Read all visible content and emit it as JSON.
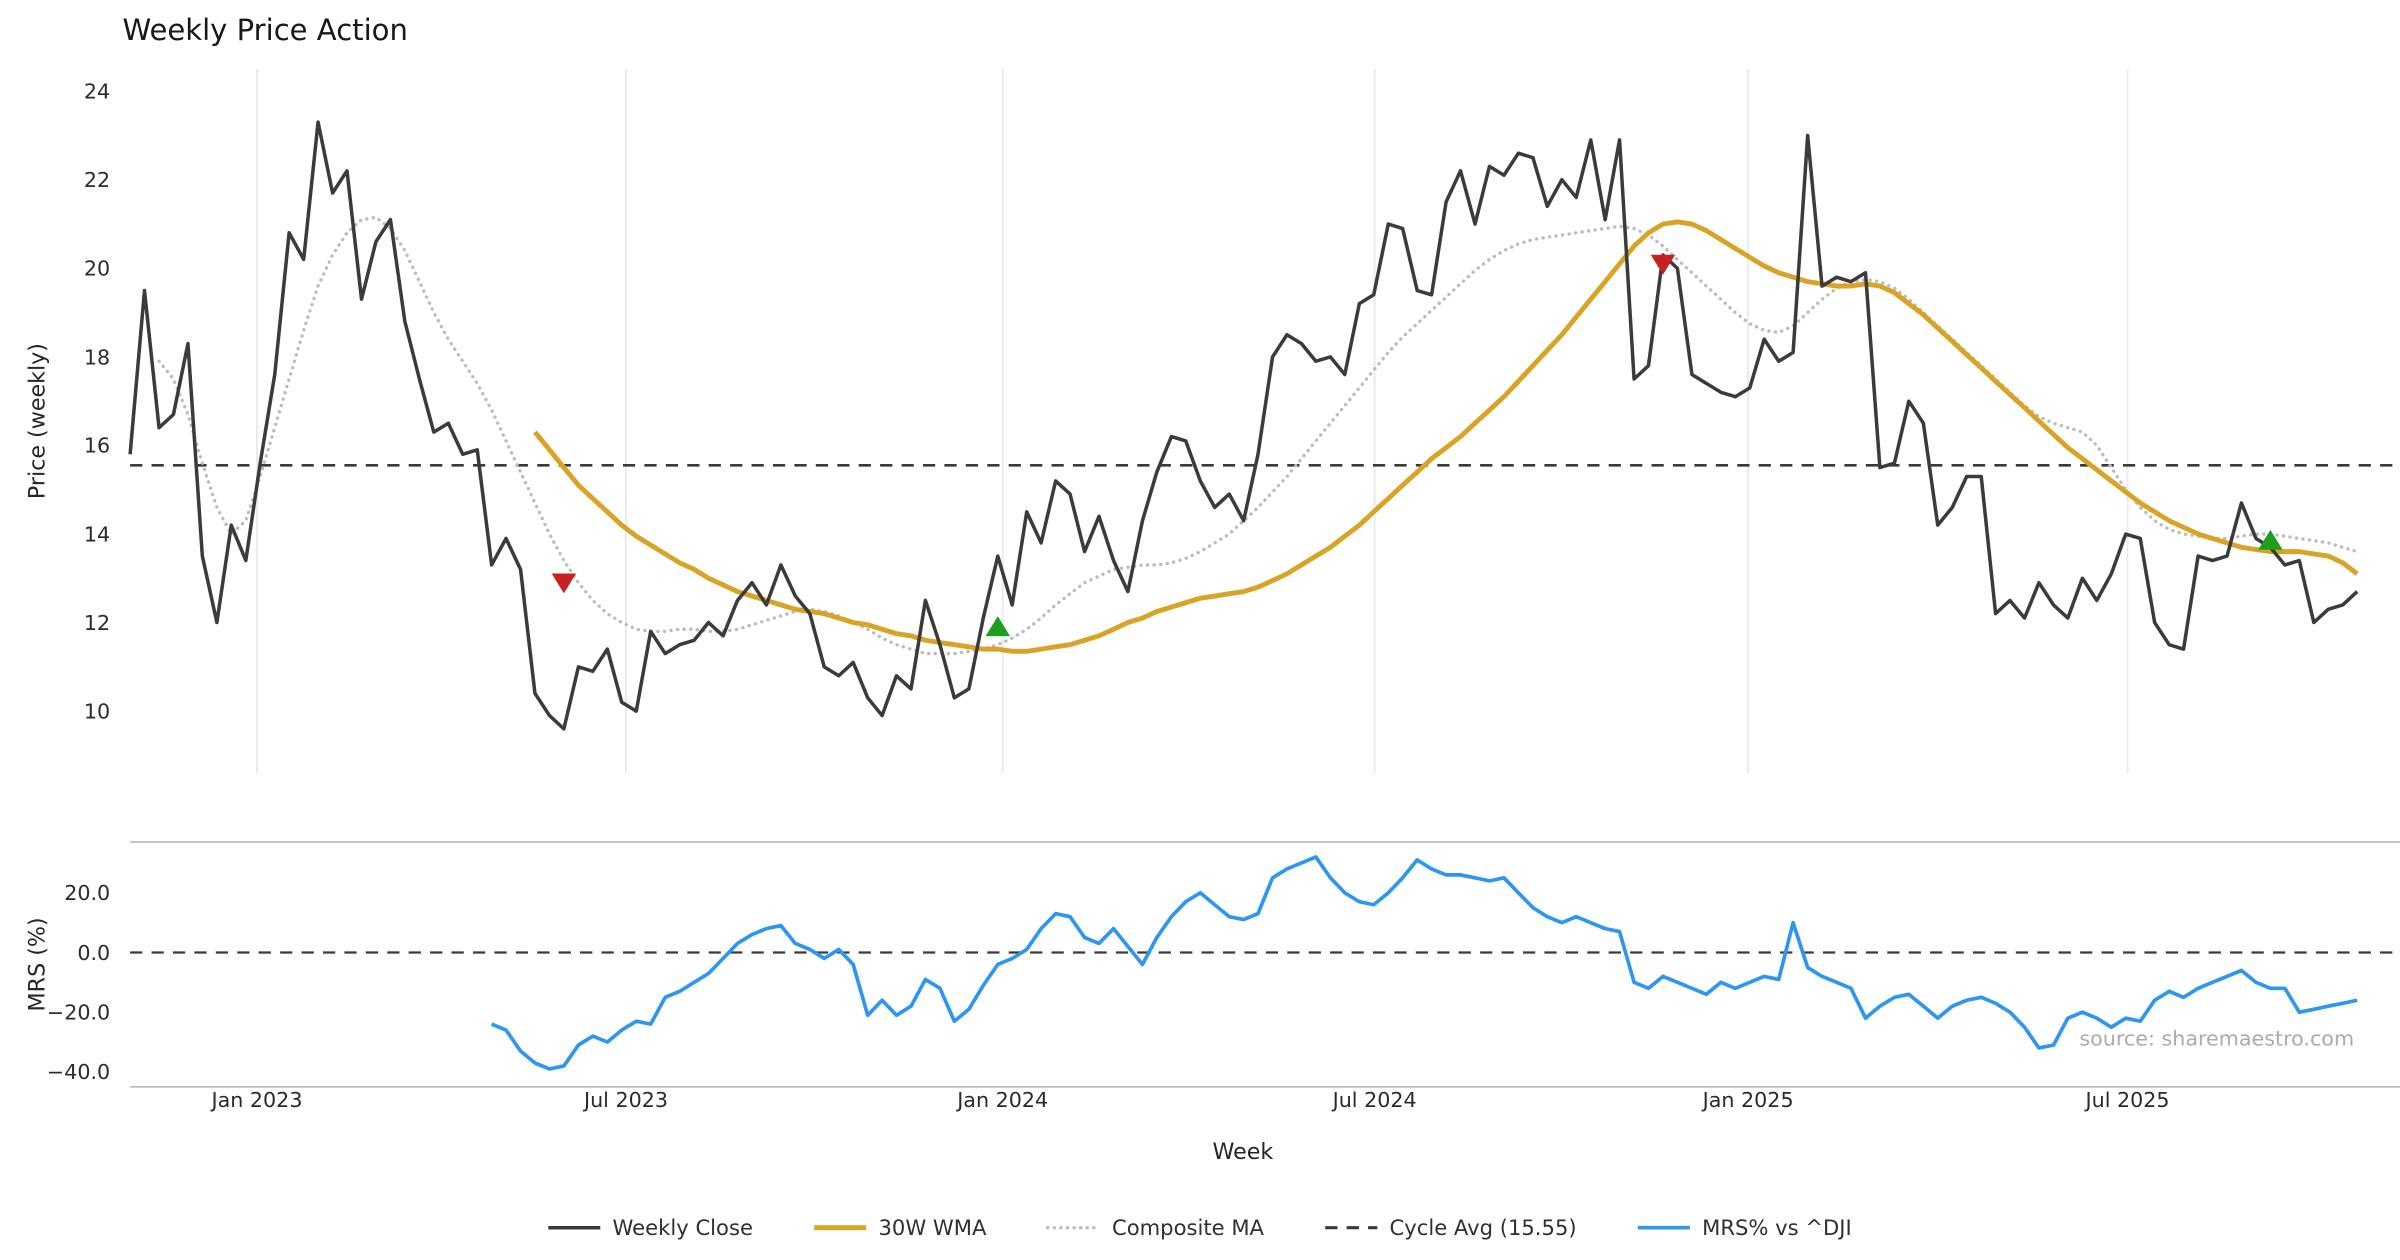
{
  "source_note": "source: sharemaestro.com",
  "colors": {
    "weekly_close": "#3b3b3b",
    "wma_30w": "#d9a425",
    "composite_ma": "#bcbcbc",
    "cycle_avg": "#3a3a3a",
    "mrs": "#2e96f0",
    "sell_marker": "#c62222",
    "buy_marker": "#1e9e1e",
    "grid": "#ebebeb",
    "spine": "#b3b3b3",
    "tick_text": "#2b2b2b",
    "source_text": "#ababab"
  },
  "legend": [
    {
      "key": "weekly_close",
      "label": "Weekly Close"
    },
    {
      "key": "wma_30w",
      "label": "30W WMA"
    },
    {
      "key": "composite_ma",
      "label": "Composite MA"
    },
    {
      "key": "cycle_avg",
      "label": "Cycle Avg (15.55)"
    },
    {
      "key": "mrs",
      "label": "MRS% vs ^DJI"
    }
  ],
  "chart_data": {
    "type": "line",
    "title": "Weekly Price Action",
    "xlabel": "Week",
    "x_unit": "weekly index (155 weeks, Nov 2022 - Oct 2025)",
    "n_points": 155,
    "grid": "vertical-x-only",
    "legend_position": "bottom-center",
    "x_ticks": [
      {
        "label": "Jan 2023",
        "f": 0.057
      },
      {
        "label": "Jul 2023",
        "f": 0.2227
      },
      {
        "label": "Jan 2024",
        "f": 0.3918
      },
      {
        "label": "Jul 2024",
        "f": 0.5588
      },
      {
        "label": "Jan 2025",
        "f": 0.7265
      },
      {
        "label": "Jul 2025",
        "f": 0.8969
      }
    ],
    "panels": [
      {
        "id": "price",
        "ylabel": "Price (weekly)",
        "ylim": [
          8.6,
          24.5
        ],
        "yticks": [
          {
            "label": "24",
            "v": 24
          },
          {
            "label": "22",
            "v": 22
          },
          {
            "label": "20",
            "v": 20
          },
          {
            "label": "18",
            "v": 18
          },
          {
            "label": "16",
            "v": 16
          },
          {
            "label": "14",
            "v": 14
          },
          {
            "label": "12",
            "v": 12
          },
          {
            "label": "10",
            "v": 10
          }
        ]
      },
      {
        "id": "mrs",
        "ylabel": "MRS (%)",
        "ylim": [
          -45,
          37
        ],
        "yticks": [
          {
            "label": "20.0",
            "v": 20
          },
          {
            "label": "0.0",
            "v": 0
          },
          {
            "label": "−20.0",
            "v": -20
          },
          {
            "label": "−40.0",
            "v": -40
          }
        ]
      }
    ],
    "cycle_avg": {
      "label": "Cycle Avg (15.55)",
      "value": 15.55
    },
    "series": [
      {
        "key": "weekly_close",
        "name": "Weekly Close",
        "panel": "price",
        "start": 0,
        "values": [
          15.8,
          19.5,
          16.4,
          16.7,
          18.3,
          13.5,
          12.0,
          14.2,
          13.4,
          15.6,
          17.6,
          20.8,
          20.2,
          23.3,
          21.7,
          22.2,
          19.3,
          20.6,
          21.1,
          18.8,
          17.5,
          16.3,
          16.5,
          15.8,
          15.9,
          13.3,
          13.9,
          13.2,
          10.4,
          9.9,
          9.6,
          11.0,
          10.9,
          11.4,
          10.2,
          10.0,
          11.8,
          11.3,
          11.5,
          11.6,
          12.0,
          11.7,
          12.5,
          12.9,
          12.4,
          13.3,
          12.6,
          12.2,
          11.0,
          10.8,
          11.1,
          10.3,
          9.9,
          10.8,
          10.5,
          12.5,
          11.5,
          10.3,
          10.5,
          12.1,
          13.5,
          12.4,
          14.5,
          13.8,
          15.2,
          14.9,
          13.6,
          14.4,
          13.4,
          12.7,
          14.3,
          15.4,
          16.2,
          16.1,
          15.2,
          14.6,
          14.9,
          14.3,
          15.8,
          18.0,
          18.5,
          18.3,
          17.9,
          18.0,
          17.6,
          19.2,
          19.4,
          21.0,
          20.9,
          19.5,
          19.4,
          21.5,
          22.2,
          21.0,
          22.3,
          22.1,
          22.6,
          22.5,
          21.4,
          22.0,
          21.6,
          22.9,
          21.1,
          22.9,
          17.5,
          17.8,
          20.3,
          20.0,
          17.6,
          17.4,
          17.2,
          17.1,
          17.3,
          18.4,
          17.9,
          18.1,
          23.0,
          19.6,
          19.8,
          19.7,
          19.9,
          15.5,
          15.6,
          17.0,
          16.5,
          14.2,
          14.6,
          15.3,
          15.3,
          12.2,
          12.5,
          12.1,
          12.9,
          12.4,
          12.1,
          13.0,
          12.5,
          13.1,
          14.0,
          13.9,
          12.0,
          11.5,
          11.4,
          13.5,
          13.4,
          13.5,
          14.7,
          13.9,
          13.7,
          13.3,
          13.4,
          12.0,
          12.3,
          12.4,
          12.7
        ]
      },
      {
        "key": "wma_30w",
        "name": "30W WMA",
        "panel": "price",
        "start": 28,
        "values": [
          16.3,
          15.9,
          15.5,
          15.1,
          14.8,
          14.5,
          14.2,
          13.95,
          13.75,
          13.55,
          13.35,
          13.2,
          13.0,
          12.85,
          12.7,
          12.6,
          12.5,
          12.4,
          12.3,
          12.25,
          12.2,
          12.1,
          12.0,
          11.95,
          11.85,
          11.75,
          11.7,
          11.6,
          11.55,
          11.5,
          11.45,
          11.4,
          11.4,
          11.35,
          11.35,
          11.4,
          11.45,
          11.5,
          11.6,
          11.7,
          11.85,
          12.0,
          12.1,
          12.25,
          12.35,
          12.45,
          12.55,
          12.6,
          12.65,
          12.7,
          12.8,
          12.95,
          13.1,
          13.3,
          13.5,
          13.7,
          13.95,
          14.2,
          14.5,
          14.8,
          15.1,
          15.4,
          15.7,
          15.95,
          16.2,
          16.5,
          16.8,
          17.1,
          17.45,
          17.8,
          18.15,
          18.5,
          18.9,
          19.3,
          19.7,
          20.1,
          20.5,
          20.8,
          21.0,
          21.05,
          21.0,
          20.85,
          20.65,
          20.45,
          20.25,
          20.05,
          19.9,
          19.8,
          19.7,
          19.65,
          19.6,
          19.6,
          19.65,
          19.6,
          19.45,
          19.2,
          18.95,
          18.65,
          18.35,
          18.05,
          17.75,
          17.45,
          17.15,
          16.85,
          16.55,
          16.25,
          15.95,
          15.7,
          15.45,
          15.2,
          14.95,
          14.7,
          14.5,
          14.3,
          14.15,
          14.0,
          13.9,
          13.8,
          13.7,
          13.65,
          13.6,
          13.6,
          13.6,
          13.55,
          13.5,
          13.35,
          13.1
        ]
      },
      {
        "key": "composite_ma",
        "name": "Composite MA",
        "panel": "price",
        "start": 2,
        "values": [
          17.9,
          17.5,
          16.7,
          15.6,
          14.6,
          14.0,
          14.3,
          15.3,
          16.4,
          17.5,
          18.6,
          19.6,
          20.3,
          20.8,
          21.1,
          21.15,
          20.9,
          20.4,
          19.7,
          19.0,
          18.4,
          17.9,
          17.4,
          16.8,
          16.1,
          15.4,
          14.7,
          14.0,
          13.4,
          12.9,
          12.5,
          12.2,
          12.0,
          11.85,
          11.8,
          11.8,
          11.85,
          11.85,
          11.8,
          11.8,
          11.85,
          11.95,
          12.05,
          12.15,
          12.25,
          12.3,
          12.25,
          12.15,
          12.0,
          11.85,
          11.65,
          11.5,
          11.4,
          11.3,
          11.3,
          11.3,
          11.35,
          11.4,
          11.5,
          11.65,
          11.85,
          12.1,
          12.4,
          12.65,
          12.9,
          13.05,
          13.2,
          13.25,
          13.3,
          13.3,
          13.35,
          13.45,
          13.6,
          13.8,
          14.0,
          14.3,
          14.6,
          14.95,
          15.3,
          15.7,
          16.1,
          16.5,
          16.9,
          17.3,
          17.7,
          18.1,
          18.45,
          18.75,
          19.05,
          19.35,
          19.65,
          19.95,
          20.2,
          20.4,
          20.55,
          20.65,
          20.7,
          20.75,
          20.8,
          20.85,
          20.9,
          20.95,
          20.9,
          20.75,
          20.5,
          20.2,
          19.9,
          19.6,
          19.3,
          19.0,
          18.75,
          18.6,
          18.55,
          18.7,
          19.0,
          19.3,
          19.55,
          19.7,
          19.75,
          19.7,
          19.55,
          19.3,
          19.0,
          18.7,
          18.4,
          18.1,
          17.8,
          17.5,
          17.2,
          16.9,
          16.65,
          16.5,
          16.4,
          16.3,
          16.0,
          15.5,
          15.0,
          14.6,
          14.3,
          14.1,
          14.0,
          13.95,
          13.9,
          13.9,
          13.95,
          14.0,
          14.0,
          13.95,
          13.9,
          13.85,
          13.8,
          13.7,
          13.6
        ]
      },
      {
        "key": "mrs",
        "name": "MRS% vs ^DJI",
        "panel": "mrs",
        "start": 25,
        "values": [
          -24,
          -26,
          -33,
          -37,
          -39,
          -38,
          -31,
          -28,
          -30,
          -26,
          -23,
          -24,
          -15,
          -13,
          -10,
          -7,
          -2,
          3,
          6,
          8,
          9,
          3,
          1,
          -2,
          1,
          -4,
          -21,
          -16,
          -21,
          -18,
          -9,
          -12,
          -23,
          -19,
          -11,
          -4,
          -2,
          1,
          8,
          13,
          12,
          5,
          3,
          8,
          2,
          -4,
          5,
          12,
          17,
          20,
          16,
          12,
          11,
          13,
          25,
          28,
          30,
          32,
          25,
          20,
          17,
          16,
          20,
          25,
          31,
          28,
          26,
          26,
          25,
          24,
          25,
          20,
          15,
          12,
          10,
          12,
          10,
          8,
          7,
          -10,
          -12,
          -8,
          -10,
          -12,
          -14,
          -10,
          -12,
          -10,
          -8,
          -9,
          10,
          -5,
          -8,
          -10,
          -12,
          -22,
          -18,
          -15,
          -14,
          -18,
          -22,
          -18,
          -16,
          -15,
          -17,
          -20,
          -25,
          -32,
          -31,
          -22,
          -20,
          -22,
          -25,
          -22,
          -23,
          -16,
          -13,
          -15,
          -12,
          -10,
          -8,
          -6,
          -10,
          -12,
          -12,
          -20,
          -19,
          -18,
          -17,
          -16
        ]
      }
    ],
    "signals": [
      {
        "type": "sell",
        "marker": "triangle-down",
        "index": 30,
        "value": 12.9
      },
      {
        "type": "buy",
        "marker": "triangle-up",
        "index": 60,
        "value": 11.9
      },
      {
        "type": "sell",
        "marker": "triangle-down",
        "index": 106,
        "value": 20.1
      },
      {
        "type": "buy",
        "marker": "triangle-up",
        "index": 148,
        "value": 13.85
      }
    ]
  }
}
